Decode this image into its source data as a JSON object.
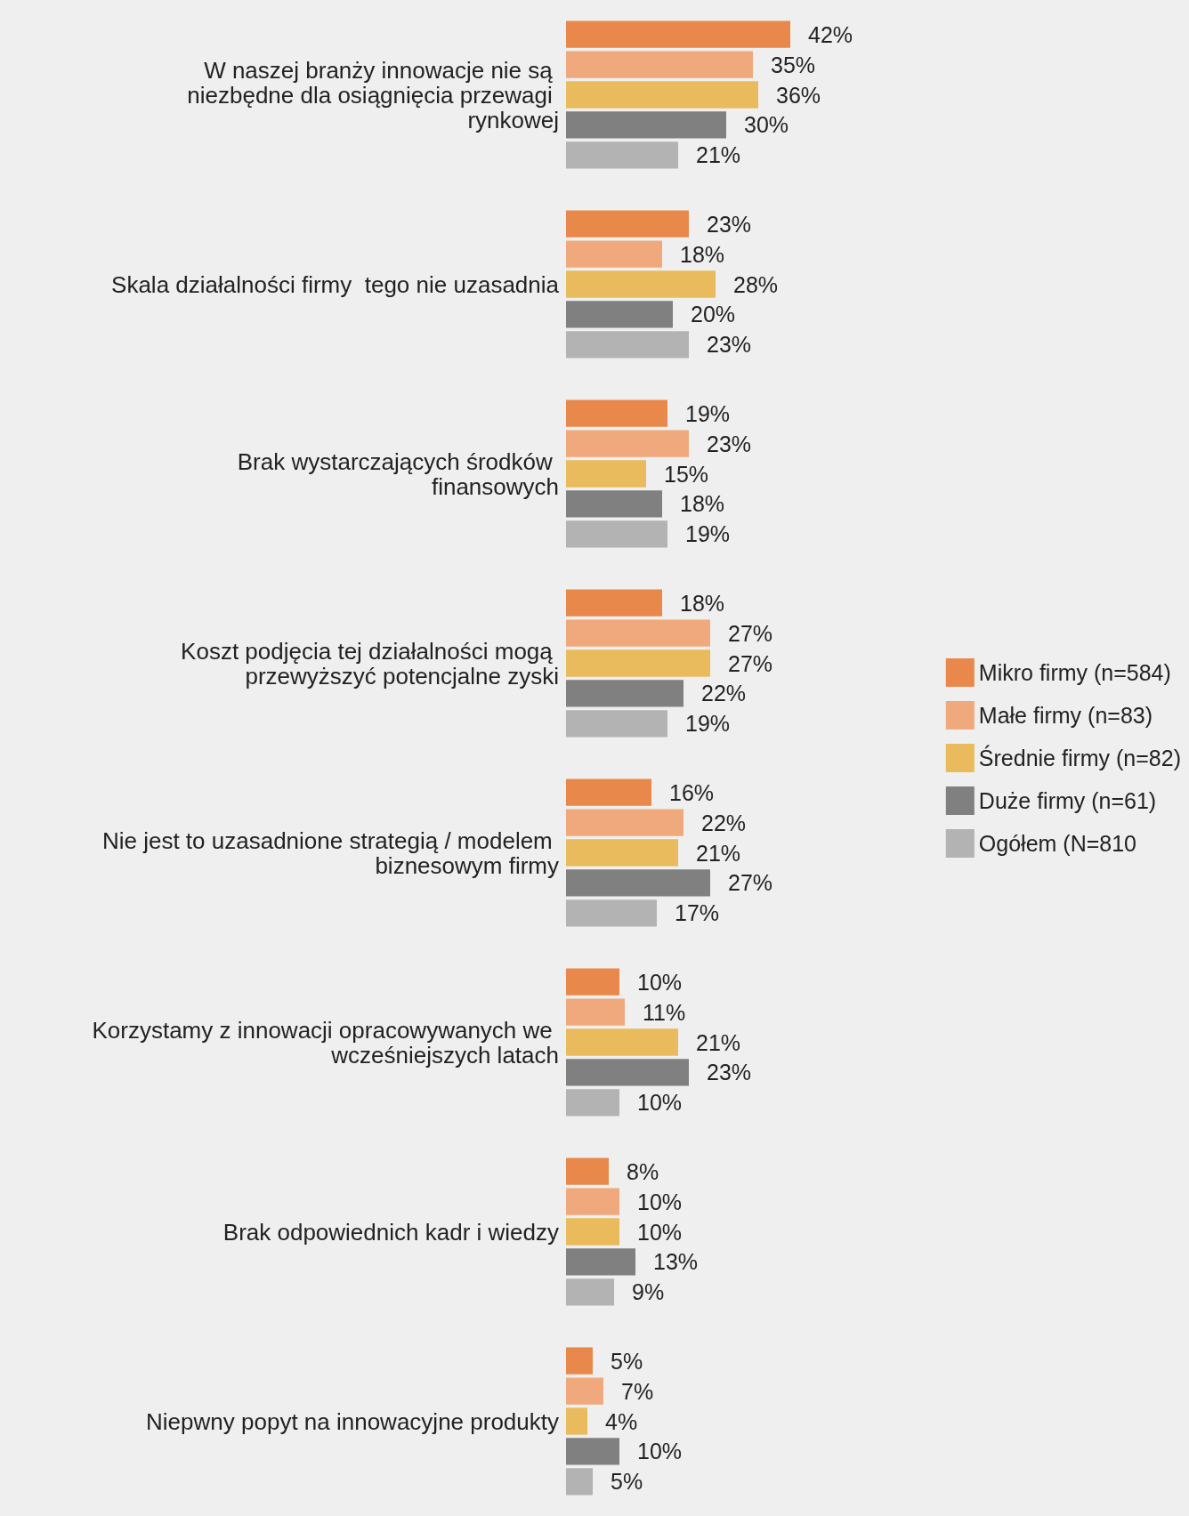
{
  "chart_data": {
    "type": "bar",
    "orientation": "horizontal",
    "legend": "right",
    "tick_labels": "y",
    "categories": [
      "W naszej branży innowacje nie są niezbędne dla osiągnięcia przewagi rynkowej",
      "Skala działalności firmy  tego nie uzasadnia",
      "Brak wystarczających środków finansowych",
      "Koszt podjęcia tej działalności mogą przewyższyć potencjalne zyski",
      "Nie jest to uzasadnione strategią / modelem biznesowym firmy",
      "Korzystamy z innowacji opracowywanych we wcześniejszych latach",
      "Brak odpowiednich kadr i wiedzy",
      "Niepwny popyt na innowacyjne produkty"
    ],
    "series": [
      {
        "name": "Mikro firmy (n=584)",
        "color": "#e8894b",
        "values": [
          42,
          23,
          19,
          18,
          16,
          10,
          8,
          5
        ],
        "value_labels": [
          "42%",
          "23%",
          "19%",
          "18%",
          "16%",
          "10%",
          "8%",
          "5%"
        ]
      },
      {
        "name": "Małe firmy (n=83)",
        "color": "#f0a97c",
        "values": [
          35,
          18,
          23,
          27,
          22,
          11,
          10,
          7
        ],
        "value_labels": [
          "35%",
          "18%",
          "23%",
          "27%",
          "22%",
          "11%",
          "10%",
          "7%"
        ]
      },
      {
        "name": "Średnie firmy (n=82)",
        "color": "#e9bb5c",
        "values": [
          36,
          28,
          15,
          27,
          21,
          21,
          10,
          4
        ],
        "value_labels": [
          "36%",
          "28%",
          "15%",
          "27%",
          "21%",
          "21%",
          "10%",
          "4%"
        ]
      },
      {
        "name": "Duże firmy (n=61)",
        "color": "#808080",
        "values": [
          30,
          20,
          18,
          22,
          27,
          23,
          13,
          10
        ],
        "value_labels": [
          "30%",
          "20%",
          "18%",
          "22%",
          "27%",
          "23%",
          "13%",
          "10%"
        ]
      },
      {
        "name": "Ogółem (N=810",
        "color": "#b3b3b3",
        "values": [
          21,
          23,
          19,
          19,
          17,
          10,
          9,
          5
        ],
        "value_labels": [
          "21%",
          "23%",
          "19%",
          "19%",
          "17%",
          "10%",
          "9%",
          "5%"
        ]
      }
    ]
  }
}
